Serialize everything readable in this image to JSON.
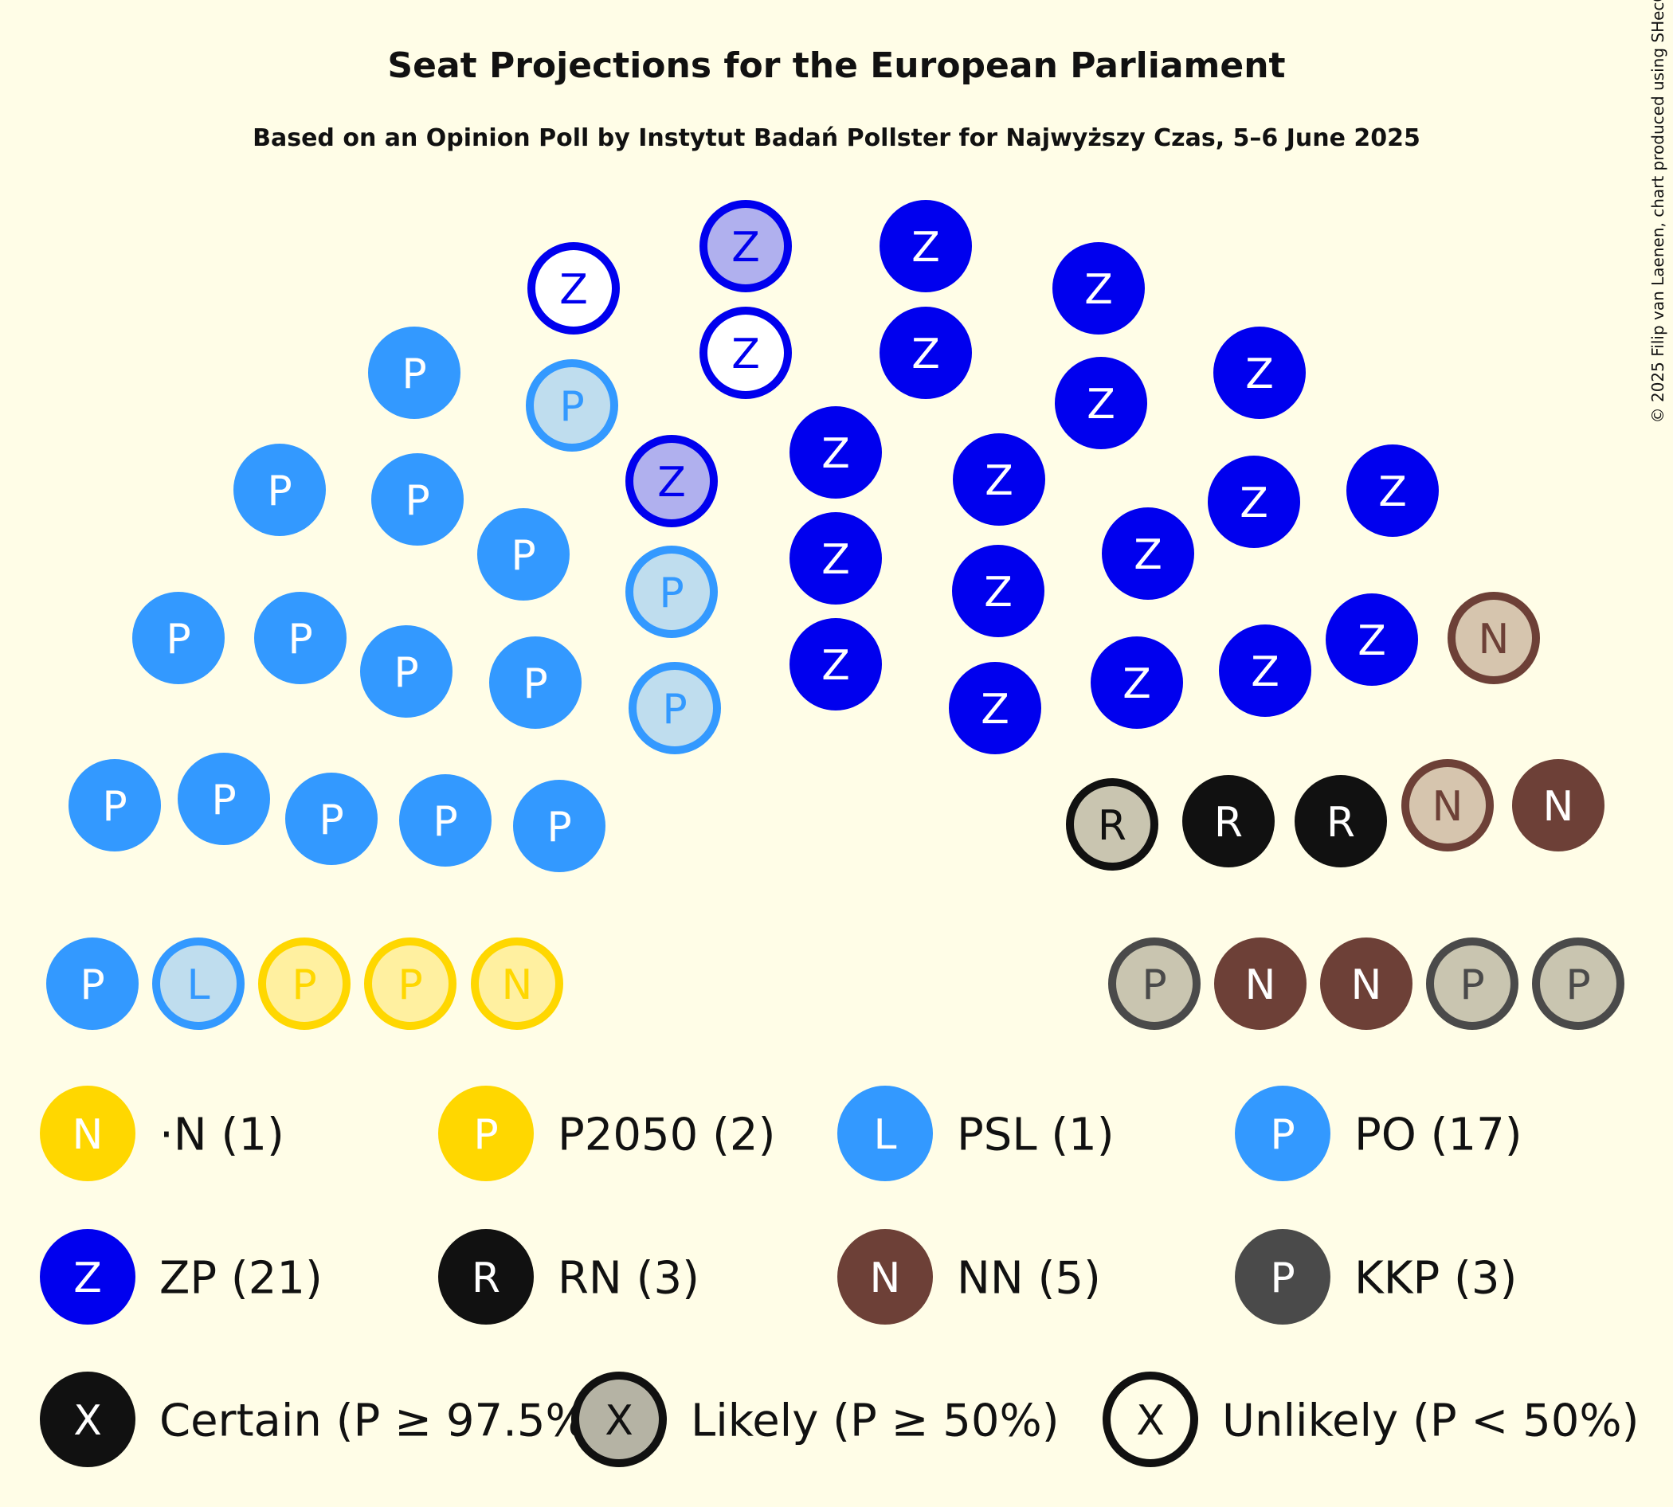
{
  "chart_data": {
    "type": "parliament",
    "title": "Seat Projections for the European Parliament",
    "subtitle": "Based on an Opinion Poll by Instytut Badań Pollster for Najwyższy Czas, 5–6 June 2025",
    "credit": "© 2025 Filip van Laenen, chart produced using SHecC",
    "parties": [
      {
        "key": "N",
        "letter": "N",
        "label": "·N (1)",
        "name": "·N",
        "seats": 1,
        "color": "#FFD700"
      },
      {
        "key": "P2050",
        "letter": "P",
        "label": "P2050 (2)",
        "name": "P2050",
        "seats": 2,
        "color": "#FFD700"
      },
      {
        "key": "PSL",
        "letter": "L",
        "label": "PSL (1)",
        "name": "PSL",
        "seats": 1,
        "color": "#3399FF"
      },
      {
        "key": "PO",
        "letter": "P",
        "label": "PO (17)",
        "name": "PO",
        "seats": 17,
        "color": "#3399FF"
      },
      {
        "key": "ZP",
        "letter": "Z",
        "label": "ZP (21)",
        "name": "ZP",
        "seats": 21,
        "color": "#0000EE"
      },
      {
        "key": "RN",
        "letter": "R",
        "label": "RN (3)",
        "name": "RN",
        "seats": 3,
        "color": "#111111"
      },
      {
        "key": "NN",
        "letter": "N",
        "label": "NN (5)",
        "name": "NN",
        "seats": 5,
        "color": "#6D4037"
      },
      {
        "key": "KKP",
        "letter": "P",
        "label": "KKP (3)",
        "name": "KKP",
        "seats": 3,
        "color": "#4A4A4A"
      }
    ],
    "certainty": [
      {
        "key": "certain",
        "letter": "X",
        "label": "Certain (P ≥ 97.5%)"
      },
      {
        "key": "likely",
        "letter": "X",
        "label": "Likely (P ≥ 50%)"
      },
      {
        "key": "unlikely",
        "letter": "X",
        "label": "Unlikely (P < 50%)"
      }
    ],
    "seat_status": {
      "N": [
        "unlikely"
      ],
      "P2050": [
        "unlikely",
        "unlikely"
      ],
      "PSL": [
        "likely"
      ],
      "PO": [
        "certain",
        "certain",
        "certain",
        "certain",
        "certain",
        "certain",
        "certain",
        "certain",
        "certain",
        "certain",
        "certain",
        "certain",
        "certain",
        "certain",
        "likely",
        "likely",
        "likely"
      ],
      "ZP": [
        "certain",
        "certain",
        "certain",
        "certain",
        "certain",
        "certain",
        "certain",
        "certain",
        "certain",
        "certain",
        "certain",
        "certain",
        "certain",
        "certain",
        "certain",
        "certain",
        "certain",
        "likely",
        "likely",
        "unlikely",
        "unlikely"
      ],
      "RN": [
        "certain",
        "certain",
        "likely"
      ],
      "NN": [
        "certain",
        "certain",
        "certain",
        "likely",
        "likely"
      ],
      "KKP": [
        "likely",
        "likely",
        "likely"
      ]
    }
  }
}
